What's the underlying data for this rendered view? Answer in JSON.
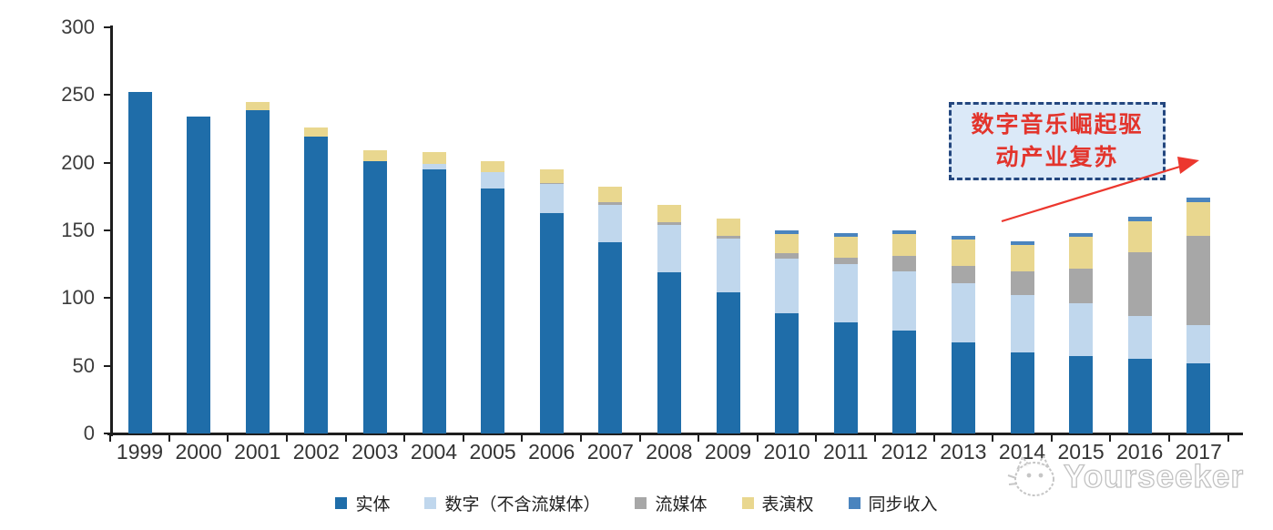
{
  "watermark": {
    "text": "Yourseeker"
  },
  "annotation": {
    "line1": "数字音乐崛起驱",
    "line2": "动产业复苏"
  },
  "legend": {
    "items": [
      "实体",
      "数字（不含流媒体）",
      "流媒体",
      "表演权",
      "同步收入"
    ]
  },
  "colors": {
    "physical": "#1f6da9",
    "digital": "#c0d7ed",
    "streaming": "#a7a7a7",
    "performance": "#e9d78f",
    "sync": "#4a84be",
    "axis": "#1e1e1e",
    "annotation_border": "#24477f",
    "annotation_fill": "#dbe9f8",
    "annotation_text": "#e3342c",
    "arrow": "#ec372e",
    "watermark": "#c2c2c2"
  },
  "chart_data": {
    "type": "bar",
    "stacked": true,
    "title": "",
    "xlabel": "",
    "ylabel": "",
    "ylim": [
      0,
      300
    ],
    "y_ticks": [
      0,
      50,
      100,
      150,
      200,
      250,
      300
    ],
    "grid": false,
    "legend_position": "bottom",
    "categories": [
      "1999",
      "2000",
      "2001",
      "2002",
      "2003",
      "2004",
      "2005",
      "2006",
      "2007",
      "2008",
      "2009",
      "2010",
      "2011",
      "2012",
      "2013",
      "2014",
      "2015",
      "2016",
      "2017"
    ],
    "series": [
      {
        "name": "实体",
        "color": "#1f6da9",
        "values": [
          252,
          234,
          239,
          219,
          201,
          195,
          181,
          163,
          141,
          119,
          104,
          89,
          82,
          76,
          67,
          60,
          57,
          55,
          52
        ]
      },
      {
        "name": "数字（不含流媒体）",
        "color": "#c0d7ed",
        "values": [
          0,
          0,
          0,
          0,
          0,
          4,
          12,
          21,
          28,
          35,
          40,
          40,
          43,
          44,
          44,
          42,
          39,
          32,
          28
        ]
      },
      {
        "name": "流媒体",
        "color": "#a7a7a7",
        "values": [
          0,
          0,
          0,
          0,
          0,
          0,
          0,
          1,
          2,
          2,
          2,
          4,
          5,
          11,
          13,
          18,
          26,
          47,
          66
        ]
      },
      {
        "name": "表演权",
        "color": "#e9d78f",
        "values": [
          0,
          0,
          6,
          7,
          8,
          9,
          8,
          10,
          11,
          13,
          13,
          14,
          15,
          16,
          19,
          19,
          23,
          23,
          25
        ]
      },
      {
        "name": "同步收入",
        "color": "#4a84be",
        "values": [
          0,
          0,
          0,
          0,
          0,
          0,
          0,
          0,
          0,
          0,
          0,
          3,
          3,
          3,
          3,
          3,
          3,
          3,
          3
        ]
      }
    ],
    "annotation_text": "数字音乐崛起驱动产业复苏"
  }
}
